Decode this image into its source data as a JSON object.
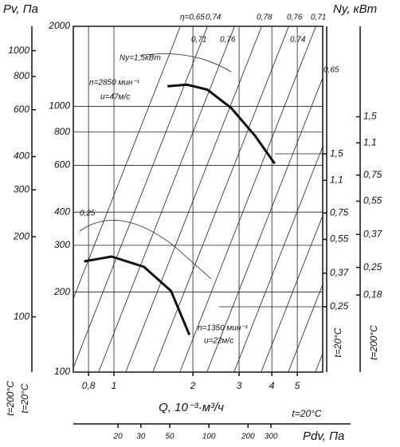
{
  "chart_data": {
    "type": "line",
    "y_label": "Pv, Па",
    "y2_label": "Ny, кВт",
    "x_label": "Q, 10⁻³·м³/ч",
    "x2_label": "Pdv, Па",
    "xscale": "log",
    "yscale": "log",
    "xlim": [
      0.7,
      6.25
    ],
    "xticks": [
      {
        "value": 0.8,
        "label": "0,8"
      },
      1,
      2,
      3,
      4,
      5
    ],
    "ylim": [
      100,
      2000
    ],
    "yticks": [
      100,
      200,
      300,
      400,
      600,
      800,
      1000,
      2000
    ],
    "y_outer_lim": [
      62,
      1235
    ],
    "y_outer_ticks": [
      100,
      200,
      300,
      400,
      600,
      800,
      1000
    ],
    "y2lim": [
      0.116,
      6.7
    ],
    "y2ticks": [
      {
        "value": 0.25,
        "label": "0,25"
      },
      {
        "value": 0.37,
        "label": "0,37"
      },
      {
        "value": 0.55,
        "label": "0,55"
      },
      {
        "value": 0.75,
        "label": "0,75"
      },
      {
        "value": 1.1,
        "label": "1,1"
      },
      {
        "value": 1.5,
        "label": "1,5"
      }
    ],
    "y2_outer_lim": [
      0.072,
      4.4
    ],
    "y2_outer_ticks": [
      {
        "value": 0.18,
        "label": "0,18"
      },
      {
        "value": 0.25,
        "label": "0,25"
      },
      {
        "value": 0.37,
        "label": "0,37"
      },
      {
        "value": 0.55,
        "label": "0,55"
      },
      {
        "value": 0.75,
        "label": "0,75"
      },
      {
        "value": 1.1,
        "label": "1,1"
      },
      {
        "value": 1.5,
        "label": "1,5"
      }
    ],
    "x2lim": [
      9.06,
      750
    ],
    "x2ticks": [
      20,
      30,
      50,
      100,
      200,
      300
    ],
    "grid": true,
    "series": [
      {
        "color": "#111111",
        "x": [
          1.6,
          1.9,
          2.27,
          2.8,
          3.45,
          4.1
        ],
        "values": [
          1189,
          1206,
          1155,
          985,
          775,
          609
        ]
      },
      {
        "color": "#111111",
        "x": [
          0.77,
          0.98,
          1.3,
          1.65,
          1.94
        ],
        "values": [
          261,
          272,
          249,
          202,
          138
        ]
      }
    ],
    "annotations": [
      "η=0,65",
      "0,74",
      "0,78",
      "0,76",
      "0,71",
      "0,71",
      "0,76",
      "0,74",
      "0,65",
      "Ny=1,5кВт",
      "n=2850 мин⁻¹",
      "u=47м/с",
      "0,25",
      "n=1350 мин⁻¹",
      "u=22м/с"
    ],
    "temperature_labels": [
      "t=200°C",
      "t=20°C",
      "t=20°C",
      "t=200°C",
      "t=20°C"
    ]
  }
}
